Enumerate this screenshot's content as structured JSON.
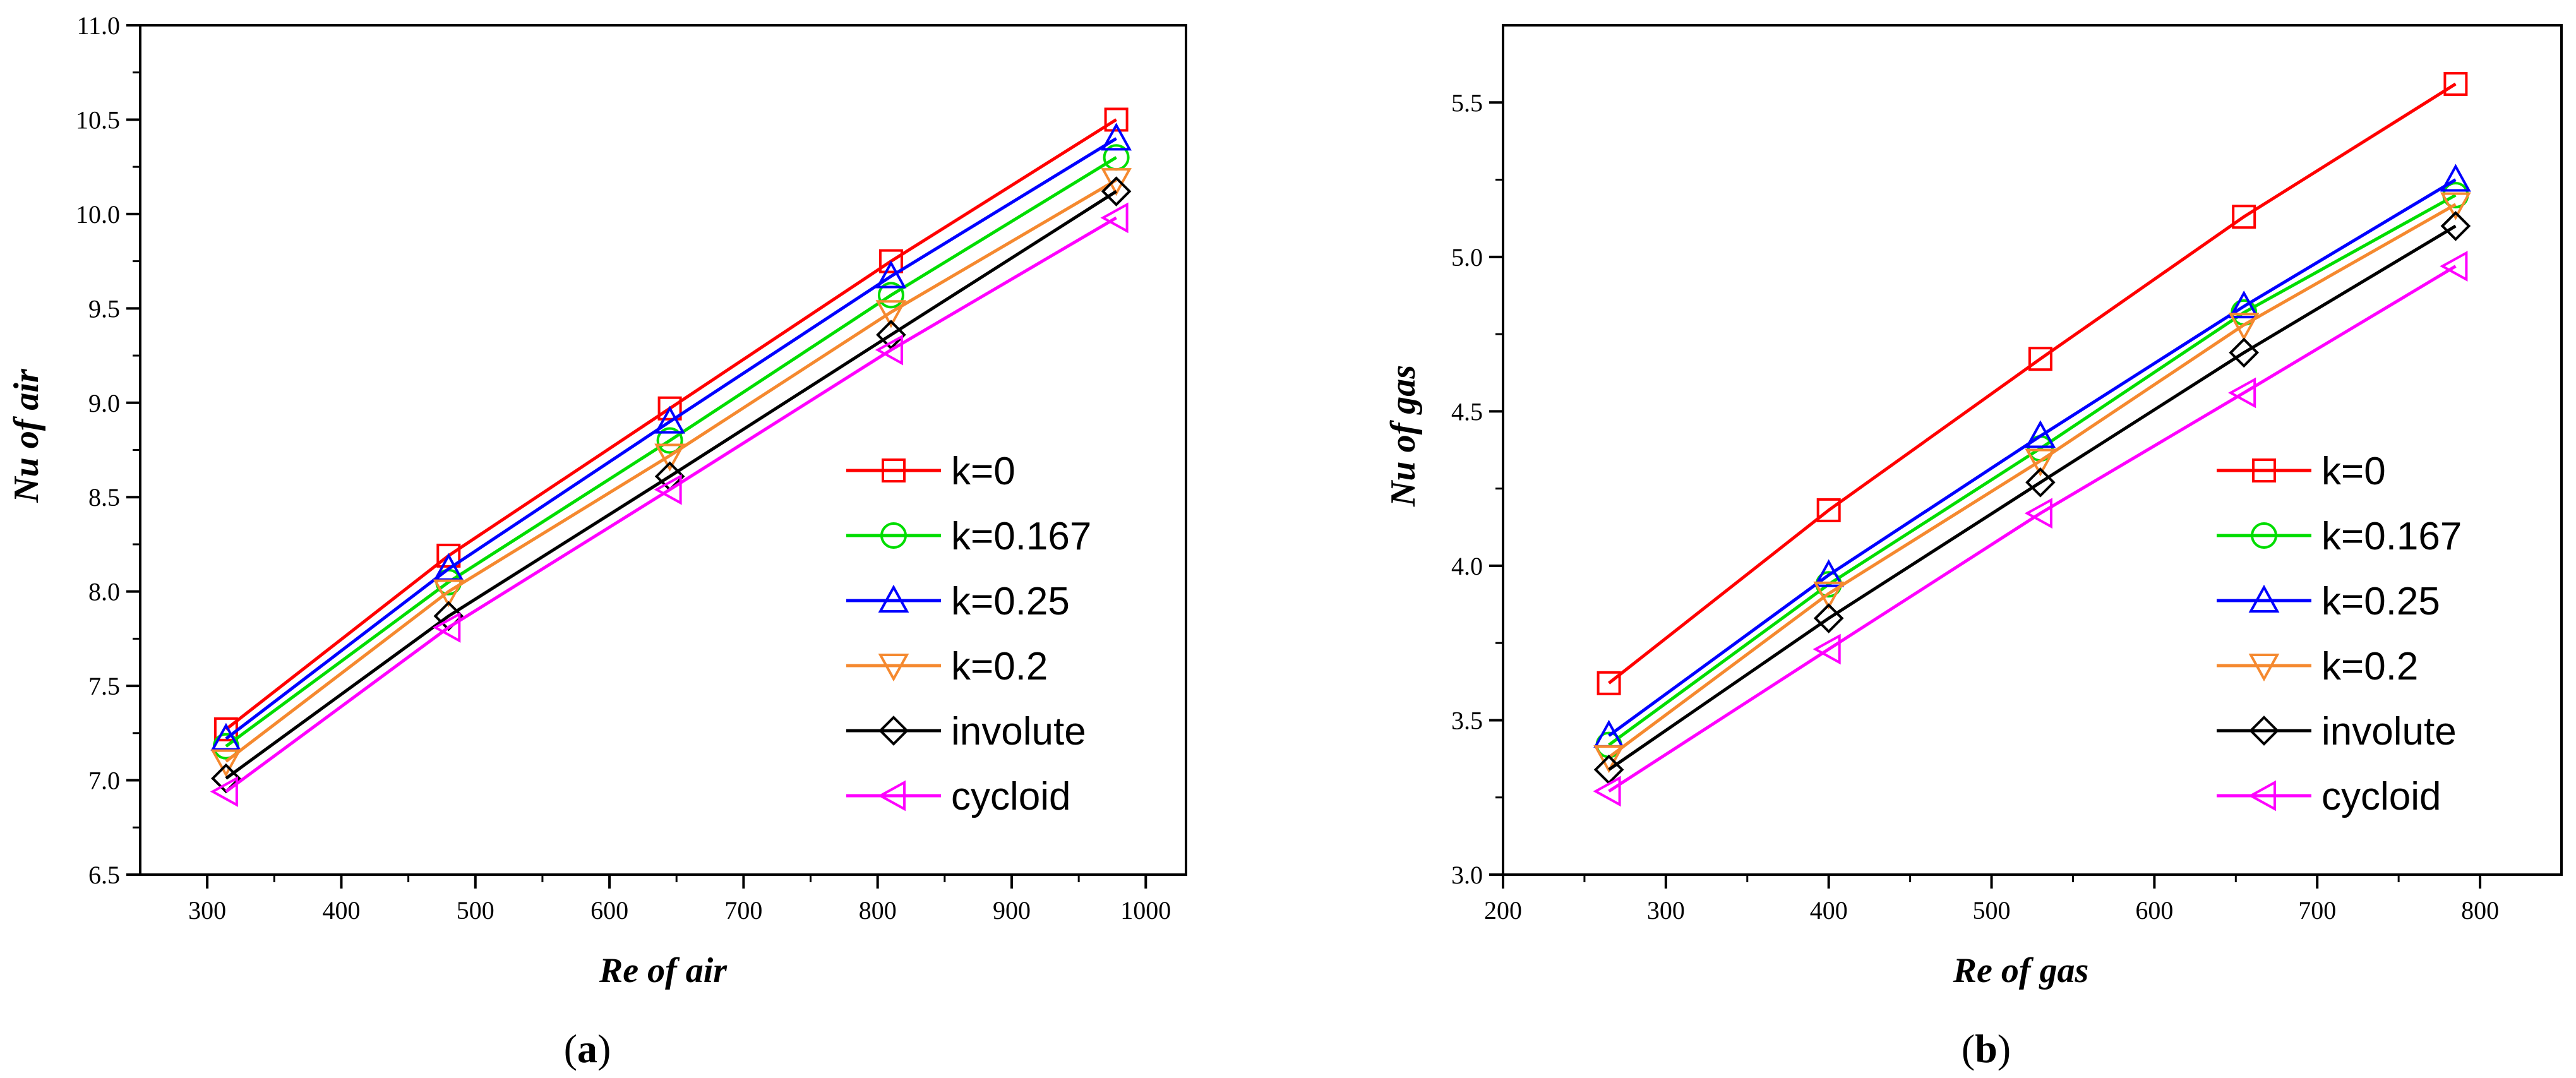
{
  "chart_data": [
    {
      "type": "line",
      "panel": "(a)",
      "panel_letter": "a",
      "xlabel": "Re of air",
      "ylabel": "Nu of air",
      "xlim": [
        250,
        1030
      ],
      "ylim": [
        6.5,
        11.0
      ],
      "xticks": [
        300,
        400,
        500,
        600,
        700,
        800,
        900,
        1000
      ],
      "yticks": [
        6.5,
        7.0,
        7.5,
        8.0,
        8.5,
        9.0,
        9.5,
        10.0,
        10.5,
        11.0
      ],
      "x": [
        314,
        480,
        645,
        810,
        978
      ],
      "legend_position": "lower-right",
      "series": [
        {
          "name": "k=0",
          "color": "#ff0000",
          "marker": "square",
          "values": [
            7.27,
            8.19,
            8.97,
            9.75,
            10.5
          ]
        },
        {
          "name": "k=0.167",
          "color": "#00dd00",
          "marker": "circle",
          "values": [
            7.18,
            8.05,
            8.8,
            9.57,
            10.3
          ]
        },
        {
          "name": "k=0.25",
          "color": "#0000ff",
          "marker": "triangle-up",
          "values": [
            7.22,
            8.12,
            8.9,
            9.67,
            10.4
          ]
        },
        {
          "name": "k=0.2",
          "color": "#f5892f",
          "marker": "triangle-down",
          "values": [
            7.1,
            8.0,
            8.72,
            9.48,
            10.18
          ]
        },
        {
          "name": "involute",
          "color": "#000000",
          "marker": "diamond",
          "values": [
            7.01,
            7.87,
            8.61,
            9.36,
            10.12
          ]
        },
        {
          "name": "cycloid",
          "color": "#ff00ff",
          "marker": "triangle-left",
          "values": [
            6.94,
            7.81,
            8.54,
            9.28,
            9.98
          ]
        }
      ]
    },
    {
      "type": "line",
      "panel": "(b)",
      "panel_letter": "b",
      "xlabel": "Re of gas",
      "ylabel": "Nu of gas",
      "xlim": [
        200,
        850
      ],
      "ylim": [
        3.0,
        5.75
      ],
      "xticks": [
        200,
        300,
        400,
        500,
        600,
        700,
        800
      ],
      "yticks": [
        3.0,
        3.5,
        4.0,
        4.5,
        5.0,
        5.5
      ],
      "x": [
        265,
        400,
        530,
        655,
        785
      ],
      "legend_position": "lower-right",
      "series": [
        {
          "name": "k=0",
          "color": "#ff0000",
          "marker": "square",
          "values": [
            3.62,
            4.18,
            4.67,
            5.13,
            5.56
          ]
        },
        {
          "name": "k=0.167",
          "color": "#00dd00",
          "marker": "circle",
          "values": [
            3.42,
            3.94,
            4.38,
            4.82,
            5.2
          ]
        },
        {
          "name": "k=0.25",
          "color": "#0000ff",
          "marker": "triangle-up",
          "values": [
            3.45,
            3.97,
            4.42,
            4.84,
            5.25
          ]
        },
        {
          "name": "k=0.2",
          "color": "#f5892f",
          "marker": "triangle-down",
          "values": [
            3.38,
            3.91,
            4.34,
            4.78,
            5.17
          ]
        },
        {
          "name": "involute",
          "color": "#000000",
          "marker": "diamond",
          "values": [
            3.34,
            3.83,
            4.27,
            4.69,
            5.1
          ]
        },
        {
          "name": "cycloid",
          "color": "#ff00ff",
          "marker": "triangle-left",
          "values": [
            3.27,
            3.73,
            4.17,
            4.56,
            4.97
          ]
        }
      ]
    }
  ]
}
